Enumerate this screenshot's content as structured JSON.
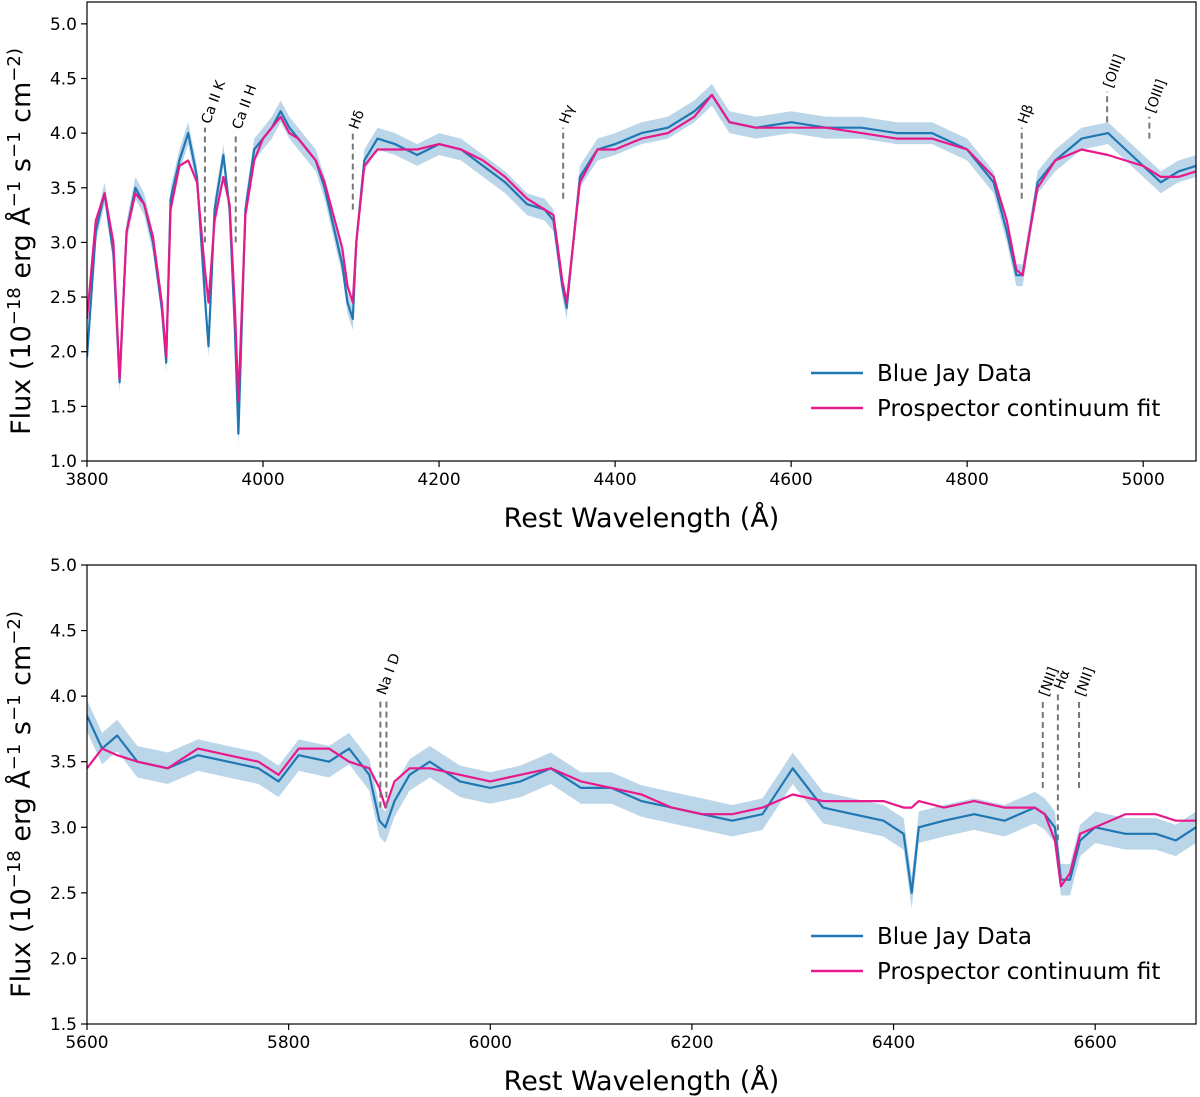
{
  "chart_data": [
    {
      "type": "line",
      "xlabel": "Rest Wavelength (Å)",
      "ylabel": "Flux (10^−18 erg Å^−1 s^−1 cm^−2)",
      "xlim": [
        3800,
        5060
      ],
      "ylim": [
        1.0,
        5.2
      ],
      "xticks": [
        3800,
        4000,
        4200,
        4400,
        4600,
        4800,
        5000
      ],
      "yticks": [
        1.0,
        1.5,
        2.0,
        2.5,
        3.0,
        3.5,
        4.0,
        4.5,
        5.0
      ],
      "legend_position": "lower-right",
      "series": [
        {
          "name": "Blue Jay Data",
          "color": "#1f77b4",
          "uncertainty": 0.1,
          "x": [
            3800,
            3810,
            3820,
            3830,
            3837,
            3845,
            3855,
            3865,
            3875,
            3885,
            3890,
            3895,
            3905,
            3915,
            3925,
            3934,
            3938,
            3945,
            3955,
            3962,
            3968,
            3972,
            3980,
            3990,
            4000,
            4010,
            4020,
            4030,
            4040,
            4050,
            4060,
            4070,
            4080,
            4090,
            4096,
            4102,
            4106,
            4115,
            4130,
            4150,
            4175,
            4200,
            4225,
            4250,
            4275,
            4300,
            4320,
            4330,
            4340,
            4345,
            4360,
            4380,
            4400,
            4430,
            4460,
            4490,
            4510,
            4530,
            4560,
            4600,
            4640,
            4680,
            4720,
            4760,
            4800,
            4830,
            4845,
            4856,
            4863,
            4870,
            4880,
            4900,
            4930,
            4960,
            4980,
            5000,
            5020,
            5040,
            5060
          ],
          "y": [
            1.95,
            3.1,
            3.45,
            2.9,
            1.72,
            3.1,
            3.5,
            3.35,
            3.0,
            2.4,
            1.9,
            3.4,
            3.75,
            4.0,
            3.6,
            2.5,
            2.05,
            3.3,
            3.8,
            3.3,
            2.2,
            1.25,
            3.3,
            3.85,
            3.95,
            4.05,
            4.2,
            4.05,
            3.95,
            3.85,
            3.75,
            3.5,
            3.15,
            2.8,
            2.45,
            2.3,
            3.0,
            3.75,
            3.95,
            3.9,
            3.8,
            3.9,
            3.85,
            3.7,
            3.55,
            3.35,
            3.3,
            3.2,
            2.6,
            2.4,
            3.6,
            3.85,
            3.9,
            4.0,
            4.05,
            4.2,
            4.35,
            4.1,
            4.05,
            4.1,
            4.05,
            4.05,
            4.0,
            4.0,
            3.85,
            3.55,
            3.1,
            2.7,
            2.7,
            3.05,
            3.55,
            3.75,
            3.95,
            4.0,
            3.85,
            3.7,
            3.55,
            3.65,
            3.7
          ]
        },
        {
          "name": "Prospector continuum fit",
          "color": "#e8198b",
          "x": [
            3800,
            3810,
            3820,
            3830,
            3837,
            3845,
            3855,
            3865,
            3875,
            3885,
            3890,
            3895,
            3905,
            3915,
            3925,
            3934,
            3938,
            3945,
            3955,
            3962,
            3968,
            3972,
            3980,
            3990,
            4000,
            4010,
            4020,
            4030,
            4040,
            4050,
            4060,
            4070,
            4080,
            4090,
            4096,
            4102,
            4106,
            4115,
            4130,
            4150,
            4175,
            4200,
            4225,
            4250,
            4275,
            4300,
            4320,
            4330,
            4340,
            4345,
            4360,
            4380,
            4400,
            4430,
            4460,
            4490,
            4510,
            4530,
            4560,
            4600,
            4640,
            4680,
            4720,
            4760,
            4800,
            4830,
            4845,
            4856,
            4863,
            4870,
            4880,
            4900,
            4930,
            4960,
            4980,
            5000,
            5020,
            5040,
            5060
          ],
          "y": [
            2.3,
            3.2,
            3.45,
            3.0,
            1.75,
            3.1,
            3.45,
            3.35,
            3.05,
            2.45,
            1.95,
            3.3,
            3.7,
            3.75,
            3.55,
            2.75,
            2.45,
            3.2,
            3.6,
            3.35,
            2.4,
            1.55,
            3.25,
            3.75,
            3.95,
            4.05,
            4.15,
            4.0,
            3.95,
            3.85,
            3.75,
            3.55,
            3.25,
            2.95,
            2.6,
            2.45,
            3.0,
            3.7,
            3.85,
            3.85,
            3.85,
            3.9,
            3.85,
            3.75,
            3.6,
            3.4,
            3.3,
            3.25,
            2.65,
            2.45,
            3.55,
            3.85,
            3.85,
            3.95,
            4.0,
            4.15,
            4.35,
            4.1,
            4.05,
            4.05,
            4.05,
            4.0,
            3.95,
            3.95,
            3.85,
            3.6,
            3.2,
            2.75,
            2.7,
            3.05,
            3.5,
            3.75,
            3.85,
            3.8,
            3.75,
            3.7,
            3.6,
            3.6,
            3.65
          ]
        }
      ],
      "line_markers": [
        {
          "label": "Ca II K",
          "wavelength": 3934,
          "y_bottom": 3.0,
          "y_top": 4.05
        },
        {
          "label": "Ca II H",
          "wavelength": 3969,
          "y_bottom": 3.0,
          "y_top": 4.0
        },
        {
          "label": "Hδ",
          "wavelength": 4102,
          "y_bottom": 3.3,
          "y_top": 4.0
        },
        {
          "label": "Hγ",
          "wavelength": 4341,
          "y_bottom": 3.4,
          "y_top": 4.05
        },
        {
          "label": "Hβ",
          "wavelength": 4862,
          "y_bottom": 3.4,
          "y_top": 4.05
        },
        {
          "label": "[OIII]",
          "wavelength": 4959,
          "y_bottom": 4.1,
          "y_top": 4.38
        },
        {
          "label": "[OIII]",
          "wavelength": 5007,
          "y_bottom": 3.95,
          "y_top": 4.15
        }
      ]
    },
    {
      "type": "line",
      "xlabel": "Rest Wavelength (Å)",
      "ylabel": "Flux (10^−18 erg Å^−1 s^−1 cm^−2)",
      "xlim": [
        5600,
        6700
      ],
      "ylim": [
        1.5,
        5.0
      ],
      "xticks": [
        5600,
        5800,
        6000,
        6200,
        6400,
        6600
      ],
      "yticks": [
        1.5,
        2.0,
        2.5,
        3.0,
        3.5,
        4.0,
        4.5,
        5.0
      ],
      "legend_position": "lower-right",
      "series": [
        {
          "name": "Blue Jay Data",
          "color": "#1f77b4",
          "uncertainty": 0.12,
          "x": [
            5600,
            5615,
            5630,
            5650,
            5680,
            5710,
            5740,
            5770,
            5790,
            5810,
            5840,
            5860,
            5880,
            5890,
            5896,
            5905,
            5920,
            5940,
            5970,
            6000,
            6030,
            6060,
            6090,
            6120,
            6150,
            6180,
            6210,
            6240,
            6270,
            6300,
            6330,
            6360,
            6390,
            6410,
            6418,
            6425,
            6450,
            6480,
            6510,
            6540,
            6550,
            6560,
            6566,
            6575,
            6585,
            6600,
            6630,
            6660,
            6680,
            6700
          ],
          "y": [
            3.85,
            3.6,
            3.7,
            3.5,
            3.45,
            3.55,
            3.5,
            3.45,
            3.35,
            3.55,
            3.5,
            3.6,
            3.4,
            3.05,
            3.0,
            3.2,
            3.4,
            3.5,
            3.35,
            3.3,
            3.35,
            3.45,
            3.3,
            3.3,
            3.2,
            3.15,
            3.1,
            3.05,
            3.1,
            3.45,
            3.15,
            3.1,
            3.05,
            2.95,
            2.5,
            3.0,
            3.05,
            3.1,
            3.05,
            3.15,
            3.1,
            3.0,
            2.6,
            2.6,
            2.9,
            3.0,
            2.95,
            2.95,
            2.9,
            3.0
          ]
        },
        {
          "name": "Prospector continuum fit",
          "color": "#e8198b",
          "x": [
            5600,
            5615,
            5630,
            5650,
            5680,
            5710,
            5740,
            5770,
            5790,
            5810,
            5840,
            5860,
            5880,
            5890,
            5896,
            5905,
            5920,
            5940,
            5970,
            6000,
            6030,
            6060,
            6090,
            6120,
            6150,
            6180,
            6210,
            6240,
            6270,
            6300,
            6330,
            6360,
            6390,
            6410,
            6418,
            6425,
            6450,
            6480,
            6510,
            6540,
            6550,
            6560,
            6566,
            6575,
            6585,
            6600,
            6630,
            6660,
            6680,
            6700
          ],
          "y": [
            3.45,
            3.6,
            3.55,
            3.5,
            3.45,
            3.6,
            3.55,
            3.5,
            3.4,
            3.6,
            3.6,
            3.5,
            3.45,
            3.3,
            3.15,
            3.35,
            3.45,
            3.45,
            3.4,
            3.35,
            3.4,
            3.45,
            3.35,
            3.3,
            3.25,
            3.15,
            3.1,
            3.1,
            3.15,
            3.25,
            3.2,
            3.2,
            3.2,
            3.15,
            3.15,
            3.2,
            3.15,
            3.2,
            3.15,
            3.15,
            3.1,
            2.9,
            2.55,
            2.65,
            2.95,
            3.0,
            3.1,
            3.1,
            3.05,
            3.05
          ]
        }
      ],
      "line_markers": [
        {
          "label": "Na I D",
          "wavelength": 5891,
          "y_bottom": 3.15,
          "y_top": 3.98
        },
        {
          "label": "Na I D",
          "wavelength": 5897,
          "y_bottom": 3.15,
          "y_top": 3.98
        },
        {
          "label": "[NII]",
          "wavelength": 6548,
          "y_bottom": 3.3,
          "y_top": 3.97
        },
        {
          "label": "Hα",
          "wavelength": 6563,
          "y_bottom": 2.9,
          "y_top": 4.02
        },
        {
          "label": "[NII]",
          "wavelength": 6584,
          "y_bottom": 3.3,
          "y_top": 3.97
        }
      ]
    }
  ],
  "marker_labels": [
    "Ca II K",
    "Ca II H",
    "Hδ",
    "Hγ",
    "Hβ",
    "[OIII]",
    "[OIII]",
    "Na I D",
    "[NII]",
    "Hα",
    "[NII]"
  ]
}
